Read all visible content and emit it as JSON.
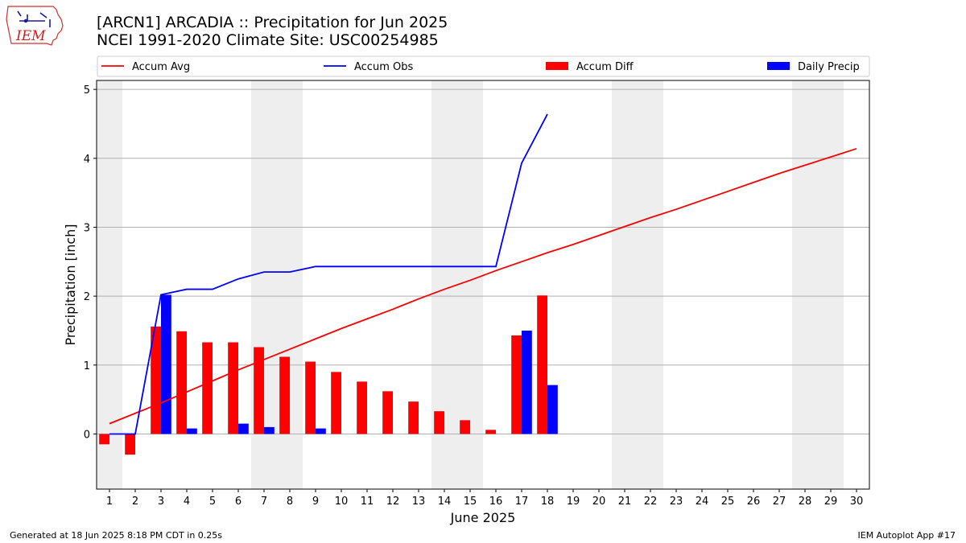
{
  "header": {
    "title_line1": "[ARCN1] ARCADIA :: Precipitation for Jun 2025",
    "title_line2": "NCEI 1991-2020 Climate Site: USC00254985",
    "logo_text": "IEM"
  },
  "footer": {
    "generated": "Generated at 18 Jun 2025 8:18 PM CDT in 0.25s",
    "app": "IEM Autoplot App #17"
  },
  "chart_data": {
    "type": "bar",
    "xlabel": "June 2025",
    "ylabel": "Precipitation [inch]",
    "xlim": [
      0.5,
      30.5
    ],
    "ylim": [
      -0.8,
      5.13
    ],
    "x_ticks": [
      1,
      2,
      3,
      4,
      5,
      6,
      7,
      8,
      9,
      10,
      11,
      12,
      13,
      14,
      15,
      16,
      17,
      18,
      19,
      20,
      21,
      22,
      23,
      24,
      25,
      26,
      27,
      28,
      29,
      30
    ],
    "y_ticks": [
      0,
      1,
      2,
      3,
      4,
      5
    ],
    "grid": "horizontal",
    "weekend_shading": [
      [
        0.5,
        1.5
      ],
      [
        6.5,
        8.5
      ],
      [
        13.5,
        15.5
      ],
      [
        20.5,
        22.5
      ],
      [
        27.5,
        29.5
      ]
    ],
    "legend_position": "top, above plot",
    "legend": [
      {
        "label": "Accum Avg",
        "kind": "line",
        "color": "#ff0000"
      },
      {
        "label": "Accum Obs",
        "kind": "line",
        "color": "#0000ff"
      },
      {
        "label": "Accum Diff",
        "kind": "bar",
        "color": "#ff0000"
      },
      {
        "label": "Daily Precip",
        "kind": "bar",
        "color": "#0000ff"
      }
    ],
    "series": [
      {
        "name": "Accum Avg",
        "type": "line",
        "color": "#ff0000",
        "x": [
          1,
          2,
          3,
          4,
          5,
          6,
          7,
          8,
          9,
          10,
          11,
          12,
          13,
          14,
          15,
          16,
          17,
          18,
          19,
          20,
          21,
          22,
          23,
          24,
          25,
          26,
          27,
          28,
          29,
          30
        ],
        "values": [
          0.15,
          0.3,
          0.45,
          0.61,
          0.77,
          0.93,
          1.08,
          1.23,
          1.38,
          1.53,
          1.67,
          1.81,
          1.96,
          2.1,
          2.23,
          2.37,
          2.5,
          2.63,
          2.75,
          2.88,
          3.01,
          3.14,
          3.26,
          3.39,
          3.52,
          3.65,
          3.78,
          3.9,
          4.02,
          4.14
        ]
      },
      {
        "name": "Accum Obs",
        "type": "line",
        "color": "#0000ff",
        "x": [
          1,
          2,
          3,
          4,
          5,
          6,
          7,
          8,
          9,
          10,
          11,
          12,
          13,
          14,
          15,
          16,
          17,
          18
        ],
        "values": [
          0.0,
          0.0,
          2.02,
          2.1,
          2.1,
          2.25,
          2.35,
          2.35,
          2.43,
          2.43,
          2.43,
          2.43,
          2.43,
          2.43,
          2.43,
          2.43,
          3.93,
          4.64
        ]
      },
      {
        "name": "Accum Diff",
        "type": "bar",
        "color": "#ff0000",
        "x": [
          1,
          2,
          3,
          4,
          5,
          6,
          7,
          8,
          9,
          10,
          11,
          12,
          13,
          14,
          15,
          16,
          17,
          18
        ],
        "values": [
          -0.15,
          -0.3,
          1.56,
          1.49,
          1.33,
          1.33,
          1.26,
          1.12,
          1.05,
          0.9,
          0.76,
          0.62,
          0.47,
          0.33,
          0.2,
          0.06,
          1.43,
          2.01
        ]
      },
      {
        "name": "Daily Precip",
        "type": "bar",
        "color": "#0000ff",
        "x": [
          1,
          2,
          3,
          4,
          5,
          6,
          7,
          8,
          9,
          10,
          11,
          12,
          13,
          14,
          15,
          16,
          17,
          18
        ],
        "values": [
          0,
          0,
          2.02,
          0.08,
          0,
          0.15,
          0.1,
          0,
          0.08,
          0,
          0,
          0,
          0,
          0,
          0,
          0,
          1.5,
          0.71
        ]
      }
    ]
  }
}
